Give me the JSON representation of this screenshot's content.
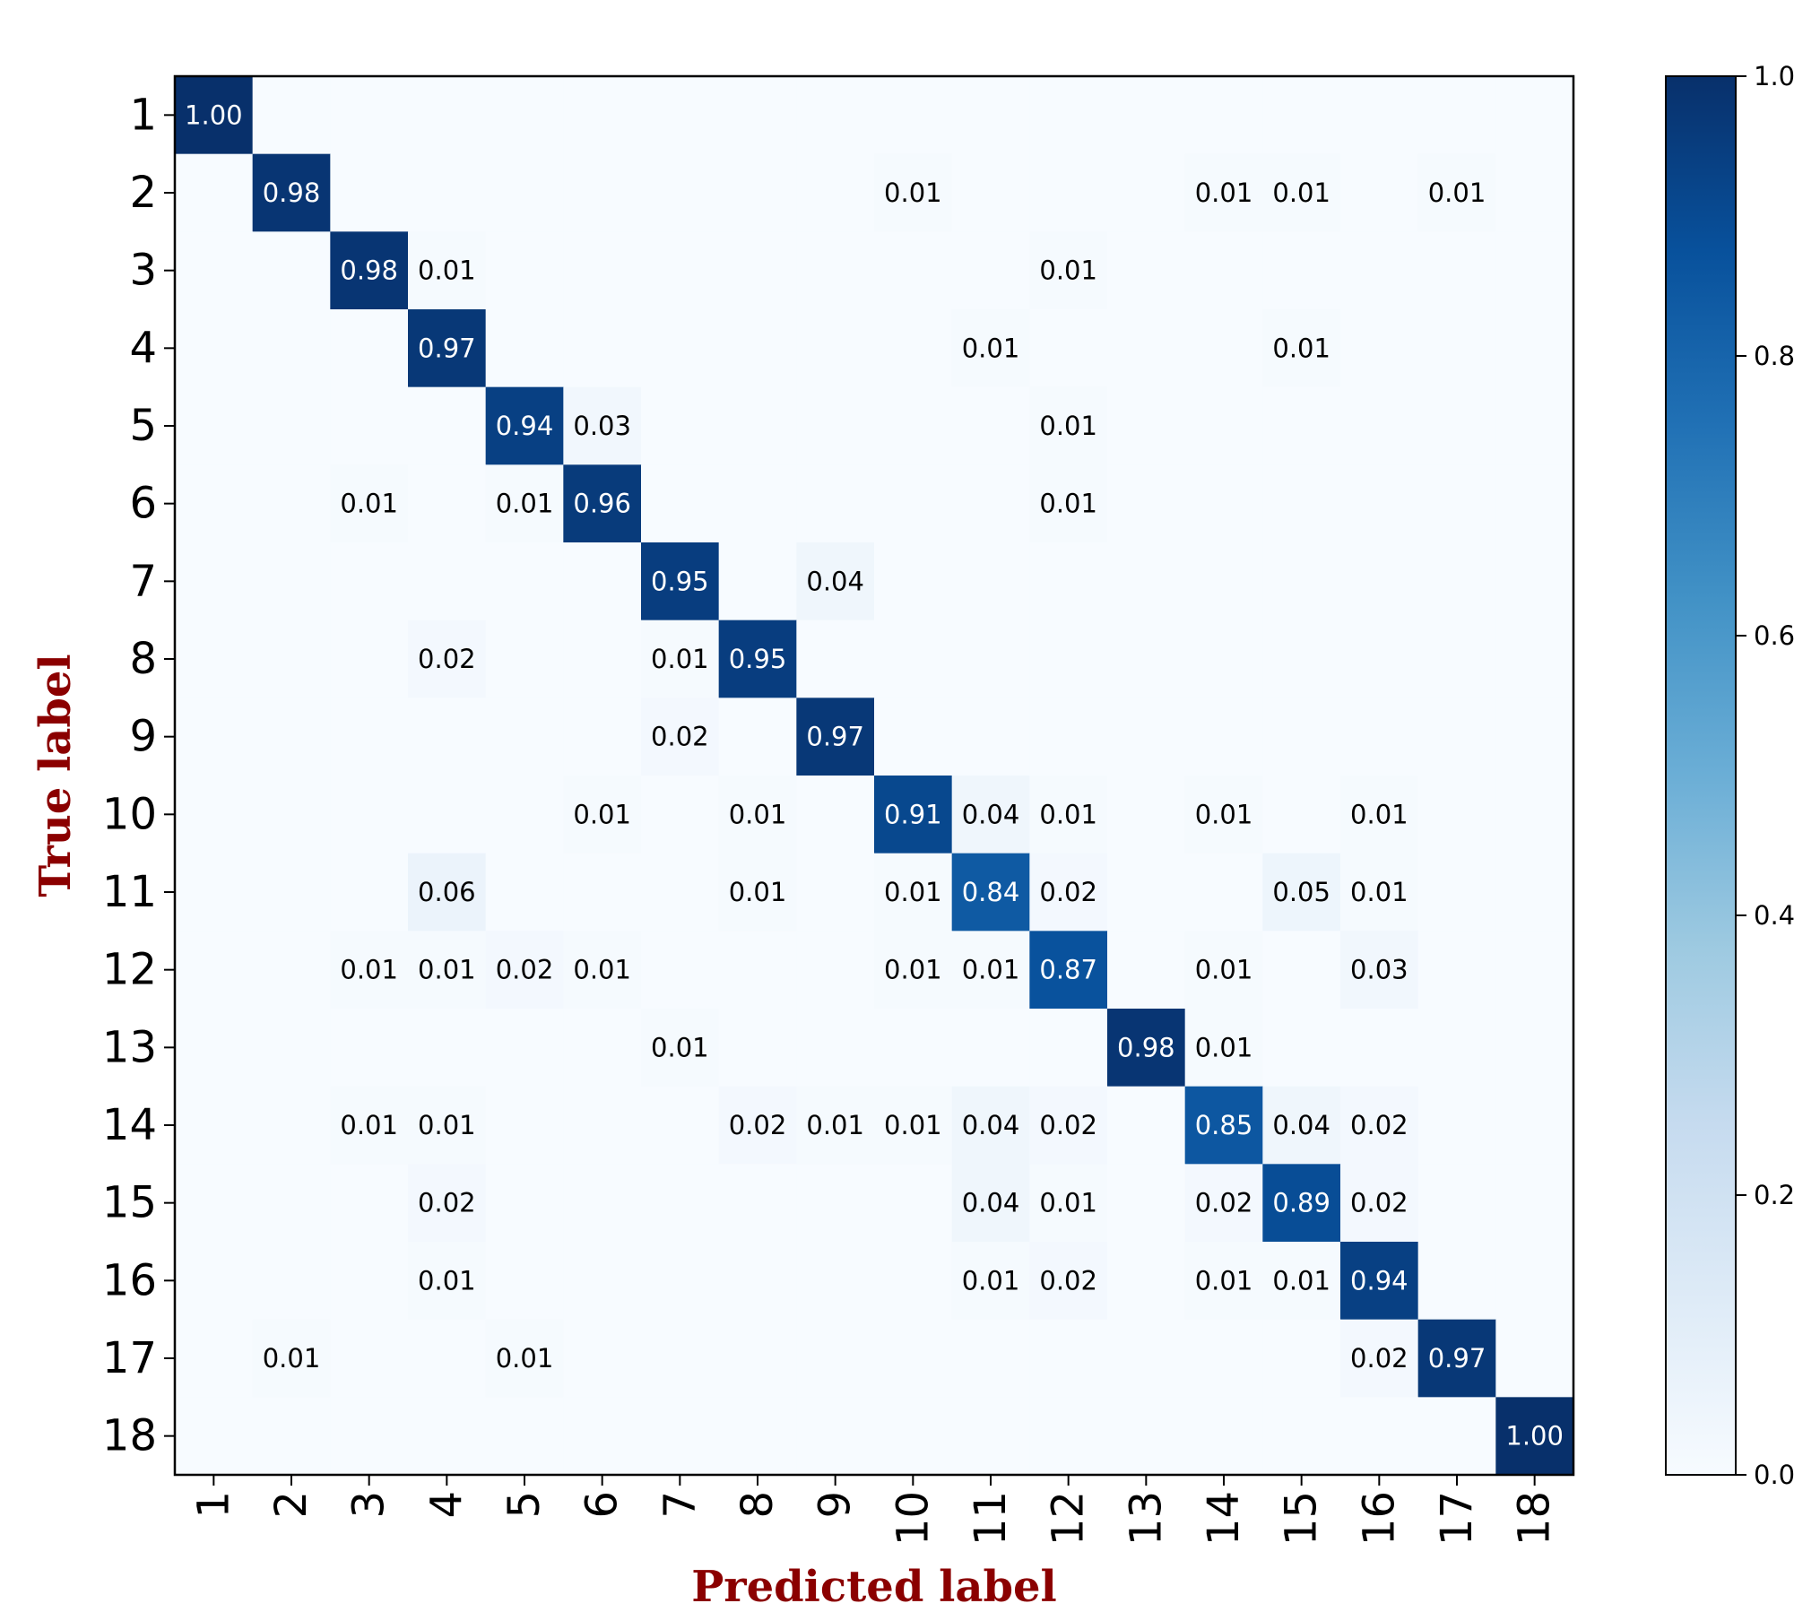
{
  "chart_data": {
    "type": "heatmap",
    "title": "",
    "xlabel": "Predicted label",
    "ylabel": "True label",
    "x_tick_labels": [
      "1",
      "2",
      "3",
      "4",
      "5",
      "6",
      "7",
      "8",
      "9",
      "10",
      "11",
      "12",
      "13",
      "14",
      "15",
      "16",
      "17",
      "18"
    ],
    "y_tick_labels": [
      "1",
      "2",
      "3",
      "4",
      "5",
      "6",
      "7",
      "8",
      "9",
      "10",
      "11",
      "12",
      "13",
      "14",
      "15",
      "16",
      "17",
      "18"
    ],
    "value_format": "2 decimals; zeros not shown",
    "color_range": [
      0.0,
      1.0
    ],
    "colormap": "Blues",
    "colors": {
      "low": "#f7fbff",
      "high": "#08306b",
      "title": "#8b0000"
    },
    "colorbar_ticks": [
      "0.0",
      "0.2",
      "0.4",
      "0.6",
      "0.8",
      "1.0"
    ],
    "matrix": [
      [
        1.0,
        0,
        0,
        0,
        0,
        0,
        0,
        0,
        0,
        0,
        0,
        0,
        0,
        0,
        0,
        0,
        0,
        0
      ],
      [
        0,
        0.98,
        0,
        0,
        0,
        0,
        0,
        0,
        0,
        0.01,
        0,
        0,
        0,
        0.01,
        0.01,
        0,
        0.01,
        0
      ],
      [
        0,
        0,
        0.98,
        0.01,
        0,
        0,
        0,
        0,
        0,
        0,
        0,
        0.01,
        0,
        0,
        0,
        0,
        0,
        0
      ],
      [
        0,
        0,
        0,
        0.97,
        0,
        0,
        0,
        0,
        0,
        0,
        0.01,
        0,
        0,
        0,
        0.01,
        0,
        0,
        0
      ],
      [
        0,
        0,
        0,
        0,
        0.94,
        0.03,
        0,
        0,
        0,
        0,
        0,
        0.01,
        0,
        0,
        0,
        0,
        0,
        0
      ],
      [
        0,
        0,
        0.01,
        0,
        0.01,
        0.96,
        0,
        0,
        0,
        0,
        0,
        0.01,
        0,
        0,
        0,
        0,
        0,
        0
      ],
      [
        0,
        0,
        0,
        0,
        0,
        0,
        0.95,
        0,
        0.04,
        0,
        0,
        0,
        0,
        0,
        0,
        0,
        0,
        0
      ],
      [
        0,
        0,
        0,
        0.02,
        0,
        0,
        0.01,
        0.95,
        0,
        0,
        0,
        0,
        0,
        0,
        0,
        0,
        0,
        0
      ],
      [
        0,
        0,
        0,
        0,
        0,
        0,
        0.02,
        0,
        0.97,
        0,
        0,
        0,
        0,
        0,
        0,
        0,
        0,
        0
      ],
      [
        0,
        0,
        0,
        0,
        0,
        0.01,
        0,
        0.01,
        0,
        0.91,
        0.04,
        0.01,
        0,
        0.01,
        0,
        0.01,
        0,
        0
      ],
      [
        0,
        0,
        0,
        0.06,
        0,
        0,
        0,
        0.01,
        0,
        0.01,
        0.84,
        0.02,
        0,
        0,
        0.05,
        0.01,
        0,
        0
      ],
      [
        0,
        0,
        0.01,
        0.01,
        0.02,
        0.01,
        0,
        0,
        0,
        0.01,
        0.01,
        0.87,
        0,
        0.01,
        0,
        0.03,
        0,
        0
      ],
      [
        0,
        0,
        0,
        0,
        0,
        0,
        0.01,
        0,
        0,
        0,
        0,
        0,
        0.98,
        0.01,
        0,
        0,
        0,
        0
      ],
      [
        0,
        0,
        0.01,
        0.01,
        0,
        0,
        0,
        0.02,
        0.01,
        0.01,
        0.04,
        0.02,
        0,
        0.85,
        0.04,
        0.02,
        0,
        0
      ],
      [
        0,
        0,
        0,
        0.02,
        0,
        0,
        0,
        0,
        0,
        0,
        0.04,
        0.01,
        0,
        0.02,
        0.89,
        0.02,
        0,
        0
      ],
      [
        0,
        0,
        0,
        0.01,
        0,
        0,
        0,
        0,
        0,
        0,
        0.01,
        0.02,
        0,
        0.01,
        0.01,
        0.94,
        0,
        0
      ],
      [
        0,
        0.01,
        0,
        0,
        0.01,
        0,
        0,
        0,
        0,
        0,
        0,
        0,
        0,
        0,
        0,
        0.02,
        0.97,
        0
      ],
      [
        0,
        0,
        0,
        0,
        0,
        0,
        0,
        0,
        0,
        0,
        0,
        0,
        0,
        0,
        0,
        0,
        0,
        1.0
      ]
    ]
  }
}
